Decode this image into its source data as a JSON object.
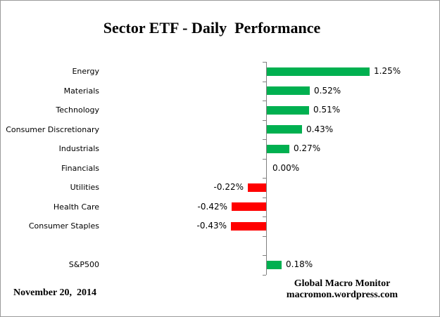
{
  "chart_data": {
    "type": "bar",
    "orientation": "horizontal",
    "title": "Sector ETF - Daily  Performance",
    "unit": "%",
    "categories": [
      "Energy",
      "Materials",
      "Technology",
      "Consumer Discretionary",
      "Industrials",
      "Financials",
      "Utilities",
      "Health Care",
      "Consumer Staples",
      "",
      "S&P500"
    ],
    "values": [
      1.25,
      0.52,
      0.51,
      0.43,
      0.27,
      0.0,
      -0.22,
      -0.42,
      -0.43,
      null,
      0.18
    ],
    "value_labels": [
      "1.25%",
      "0.52%",
      "0.51%",
      "0.43%",
      "0.27%",
      "0.00%",
      "-0.22%",
      "-0.42%",
      "-0.43%",
      "",
      "0.18%"
    ],
    "positive_color": "#00B050",
    "negative_color": "#FF0000",
    "axis_color": "#808080",
    "grid": false,
    "legend": false,
    "xlabel": "",
    "ylabel": ""
  },
  "footer": {
    "date": "November 20,  2014",
    "attribution_line1": "Global Macro Monitor",
    "attribution_line2": "macromon.wordpress.com"
  }
}
